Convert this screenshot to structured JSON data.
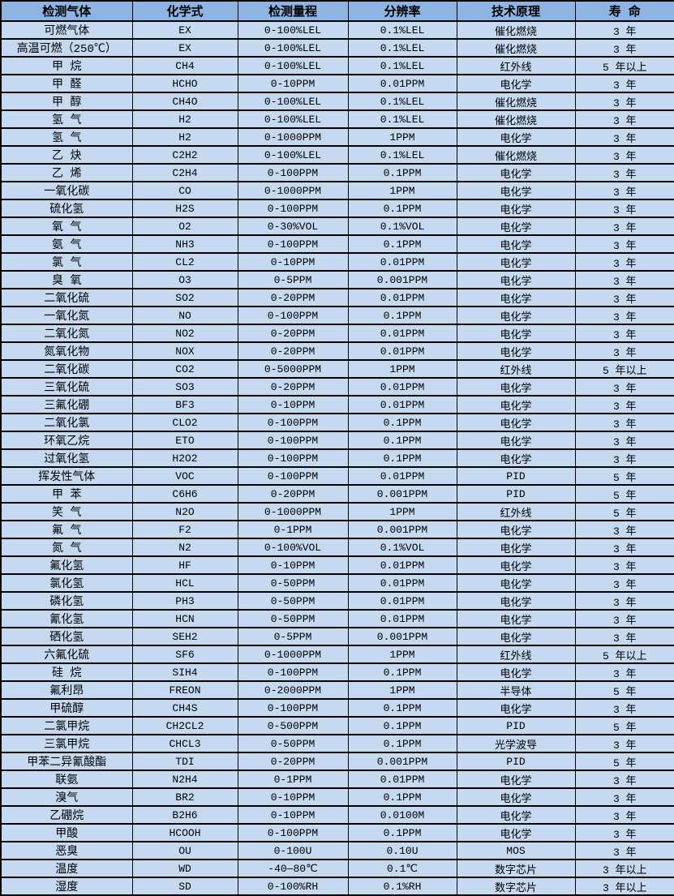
{
  "colors": {
    "header_bg": "#8DB4E2",
    "row_bg": "#C5D9F1",
    "border_color": "#000000",
    "text_color": "#000000"
  },
  "table": {
    "column_keys": [
      "gas",
      "formula",
      "range",
      "resolution",
      "principle",
      "lifespan"
    ],
    "columns": [
      "检测气体",
      "化学式",
      "检测量程",
      "分辨率",
      "技术原理",
      "寿 命"
    ],
    "rows": [
      [
        "可燃气体",
        "EX",
        "0-100%LEL",
        "0.1%LEL",
        "催化燃烧",
        "3 年"
      ],
      [
        "高温可燃（250℃）",
        "EX",
        "0-100%LEL",
        "0.1%LEL",
        "催化燃烧",
        "3 年"
      ],
      [
        "甲 烷",
        "CH4",
        "0-100%LEL",
        "0.1%LEL",
        "红外线",
        "5 年以上"
      ],
      [
        "甲 醛",
        "HCHO",
        "0-10PPM",
        "0.01PPM",
        "电化学",
        "3 年"
      ],
      [
        "甲 醇",
        "CH4O",
        "0-100%LEL",
        "0.1%LEL",
        "催化燃烧",
        "3 年"
      ],
      [
        "氢 气",
        "H2",
        "0-100%LEL",
        "0.1%LEL",
        "催化燃烧",
        "3 年"
      ],
      [
        "氢 气",
        "H2",
        "0-1000PPM",
        "1PPM",
        "电化学",
        "3 年"
      ],
      [
        "乙 炔",
        "C2H2",
        "0-100%LEL",
        "0.1%LEL",
        "催化燃烧",
        "3 年"
      ],
      [
        "乙 烯",
        "C2H4",
        "0-100PPM",
        "0.1PPM",
        "电化学",
        "3 年"
      ],
      [
        "一氧化碳",
        "CO",
        "0-1000PPM",
        "1PPM",
        "电化学",
        "3 年"
      ],
      [
        "硫化氢",
        "H2S",
        "0-100PPM",
        "0.1PPM",
        "电化学",
        "3 年"
      ],
      [
        "氧 气",
        "O2",
        "0-30%VOL",
        "0.1%VOL",
        "电化学",
        "3 年"
      ],
      [
        "氨 气",
        "NH3",
        "0-100PPM",
        "0.1PPM",
        "电化学",
        "3 年"
      ],
      [
        "氯 气",
        "CL2",
        "0-10PPM",
        "0.01PPM",
        "电化学",
        "3 年"
      ],
      [
        "臭 氧",
        "O3",
        "0-5PPM",
        "0.001PPM",
        "电化学",
        "3 年"
      ],
      [
        "二氧化硫",
        "SO2",
        "0-20PPM",
        "0.01PPM",
        "电化学",
        "3 年"
      ],
      [
        "一氧化氮",
        "NO",
        "0-100PPM",
        "0.1PPM",
        "电化学",
        "3 年"
      ],
      [
        "二氧化氮",
        "NO2",
        "0-20PPM",
        "0.01PPM",
        "电化学",
        "3 年"
      ],
      [
        "氮氧化物",
        "NOX",
        "0-20PPM",
        "0.01PPM",
        "电化学",
        "3 年"
      ],
      [
        "二氧化碳",
        "CO2",
        "0-5000PPM",
        "1PPM",
        "红外线",
        "5 年以上"
      ],
      [
        "三氧化硫",
        "SO3",
        "0-20PPM",
        "0.01PPM",
        "电化学",
        "3 年"
      ],
      [
        "三氟化硼",
        "BF3",
        "0-10PPM",
        "0.01PPM",
        "电化学",
        "3 年"
      ],
      [
        "二氧化氯",
        "CLO2",
        "0-100PPM",
        "0.1PPM",
        "电化学",
        "3 年"
      ],
      [
        "环氧乙烷",
        "ETO",
        "0-100PPM",
        "0.1PPM",
        "电化学",
        "3 年"
      ],
      [
        "过氧化氢",
        "H2O2",
        "0-100PPM",
        "0.1PPM",
        "电化学",
        "3 年"
      ],
      [
        "挥发性气体",
        "VOC",
        "0-100PPM",
        "0.01PPM",
        "PID",
        "5 年"
      ],
      [
        "甲 苯",
        "C6H6",
        "0-20PPM",
        "0.001PPM",
        "PID",
        "5 年"
      ],
      [
        "笑 气",
        "N2O",
        "0-1000PPM",
        "1PPM",
        "红外线",
        "5 年"
      ],
      [
        "氟 气",
        "F2",
        "0-1PPM",
        "0.001PPM",
        "电化学",
        "3 年"
      ],
      [
        "氮 气",
        "N2",
        "0-100%VOL",
        "0.1%VOL",
        "电化学",
        "3 年"
      ],
      [
        "氟化氢",
        "HF",
        "0-10PPM",
        "0.01PPM",
        "电化学",
        "3 年"
      ],
      [
        "氯化氢",
        "HCL",
        "0-50PPM",
        "0.01PPM",
        "电化学",
        "3 年"
      ],
      [
        "磷化氢",
        "PH3",
        "0-50PPM",
        "0.01PPM",
        "电化学",
        "3 年"
      ],
      [
        "氰化氢",
        "HCN",
        "0-50PPM",
        "0.01PPM",
        "电化学",
        "3 年"
      ],
      [
        "硒化氢",
        "SEH2",
        "0-5PPM",
        "0.001PPM",
        "电化学",
        "3 年"
      ],
      [
        "六氟化硫",
        "SF6",
        "0-1000PPM",
        "1PPM",
        "红外线",
        "5 年以上"
      ],
      [
        "硅 烷",
        "SIH4",
        "0-100PPM",
        "0.1PPM",
        "电化学",
        "3 年"
      ],
      [
        "氟利昂",
        "FREON",
        "0-2000PPM",
        "1PPM",
        "半导体",
        "5 年"
      ],
      [
        "甲硫醇",
        "CH4S",
        "0-100PPM",
        "0.1PPM",
        "电化学",
        "3 年"
      ],
      [
        "二氯甲烷",
        "CH2CL2",
        "0-500PPM",
        "0.1PPM",
        "PID",
        "5 年"
      ],
      [
        "三氯甲烷",
        "CHCL3",
        "0-50PPM",
        "0.1PPM",
        "光学波导",
        "3 年"
      ],
      [
        "甲苯二异氰酸酯",
        "TDI",
        "0-20PPM",
        "0.001PPM",
        "PID",
        "5 年"
      ],
      [
        "联氨",
        "N2H4",
        "0-1PPM",
        "0.01PPM",
        "电化学",
        "3 年"
      ],
      [
        "溴气",
        "BR2",
        "0-10PPM",
        "0.1PPM",
        "电化学",
        "3 年"
      ],
      [
        "乙硼烷",
        "B2H6",
        "0-10PPM",
        "0.0100M",
        "电化学",
        "3 年"
      ],
      [
        "甲酸",
        "HCOOH",
        "0-100PPM",
        "0.1PPM",
        "电化学",
        "3 年"
      ],
      [
        "恶臭",
        "OU",
        "0-100U",
        "0.10U",
        "MOS",
        "3 年"
      ],
      [
        "温度",
        "WD",
        "-40—80℃",
        "0.1℃",
        "数字芯片",
        "3 年以上"
      ],
      [
        "湿度",
        "SD",
        "0-100%RH",
        "0.1%RH",
        "数字芯片",
        "3 年以上"
      ]
    ]
  }
}
